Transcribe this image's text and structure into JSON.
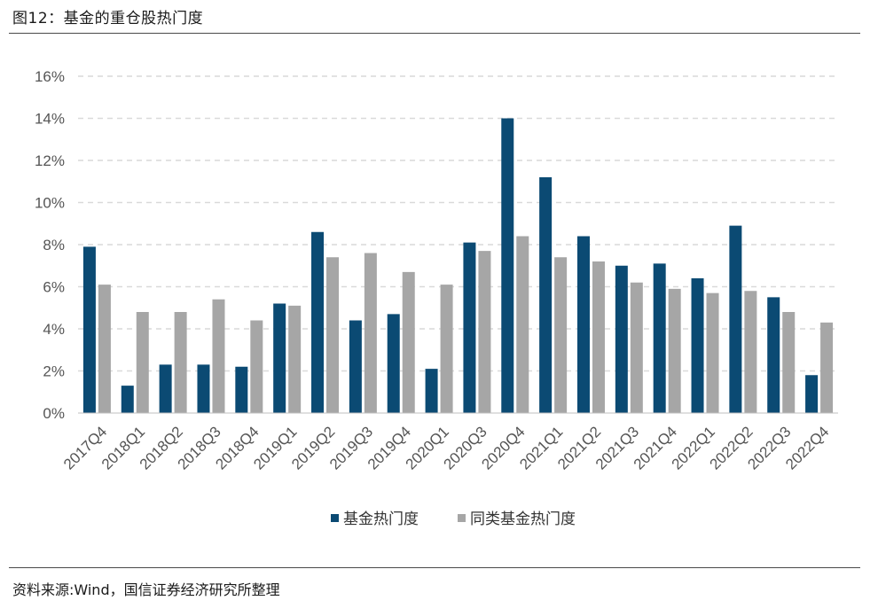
{
  "figure": {
    "title": "图12：基金的重仓股热门度",
    "source": "资料来源:Wind，国信证券经济研究所整理"
  },
  "chart_data": {
    "type": "bar",
    "categories": [
      "2017Q4",
      "2018Q1",
      "2018Q2",
      "2018Q3",
      "2018Q4",
      "2019Q1",
      "2019Q2",
      "2019Q3",
      "2019Q4",
      "2020Q1",
      "2020Q3",
      "2020Q4",
      "2021Q1",
      "2021Q2",
      "2021Q3",
      "2021Q4",
      "2022Q1",
      "2022Q2",
      "2022Q3",
      "2022Q4"
    ],
    "series": [
      {
        "name": "基金热门度",
        "color": "#0b4a73",
        "values": [
          7.9,
          1.3,
          2.3,
          2.3,
          2.2,
          5.2,
          8.6,
          4.4,
          4.7,
          2.1,
          8.1,
          14.0,
          11.2,
          8.4,
          7.0,
          7.1,
          6.4,
          8.9,
          5.5,
          1.8
        ]
      },
      {
        "name": "同类基金热门度",
        "color": "#a6a6a6",
        "values": [
          6.1,
          4.8,
          4.8,
          5.4,
          4.4,
          5.1,
          7.4,
          7.6,
          6.7,
          6.1,
          7.7,
          8.4,
          7.4,
          7.2,
          6.2,
          5.9,
          5.7,
          5.8,
          4.8,
          4.3
        ]
      }
    ],
    "y_ticks": [
      "0%",
      "2%",
      "4%",
      "6%",
      "8%",
      "10%",
      "12%",
      "14%",
      "16%"
    ],
    "ylim": [
      0,
      16
    ],
    "grid": true,
    "legend_position": "bottom-center"
  }
}
